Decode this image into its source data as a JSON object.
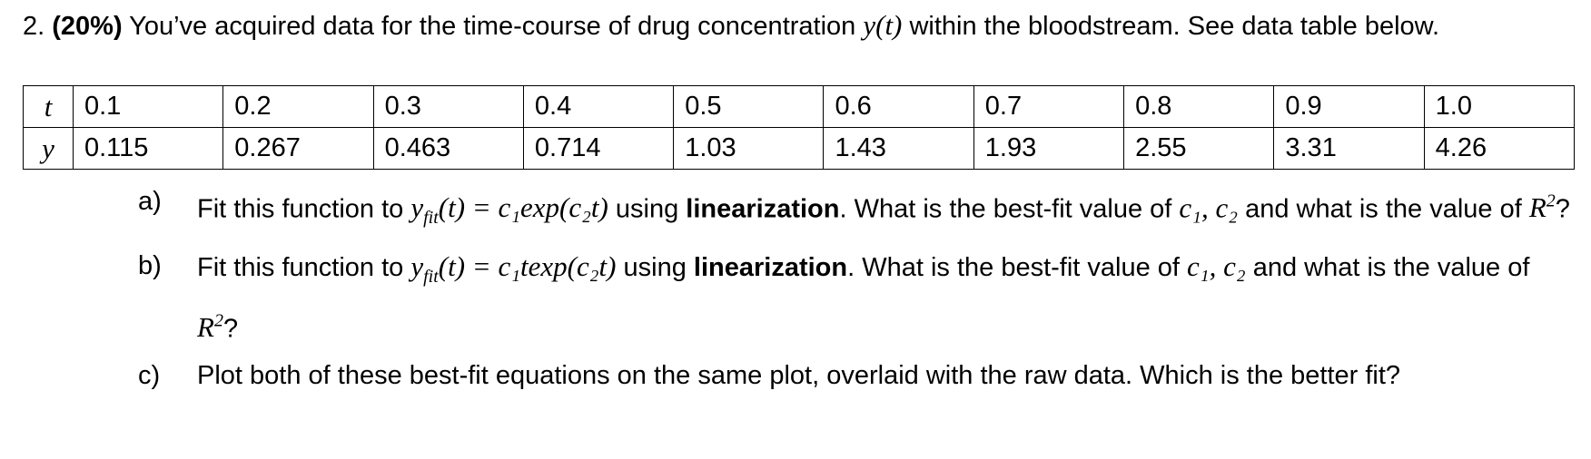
{
  "header": {
    "label": "2.",
    "points": "(20%)",
    "text_1": "You’ve acquired data for the time-course of drug concentration",
    "var": "y(t)",
    "text_2": "within the bloodstream. See data table below."
  },
  "table": {
    "rows": [
      [
        "t",
        "0.1",
        "0.2",
        "0.3",
        "0.4",
        "0.5",
        "0.6",
        "0.7",
        "0.8",
        "0.9",
        "1.0"
      ],
      [
        "y",
        "0.115",
        "0.267",
        "0.463",
        "0.714",
        "1.03",
        "1.43",
        "1.93",
        "2.55",
        "3.31",
        "4.26"
      ]
    ]
  },
  "questions": [
    {
      "label": "a)",
      "lead": "Fit this function to",
      "lhs": "y",
      "lhs_sub": "fit",
      "rhs": "(t) = c₁exp(c₂t)",
      "method_prefix": "using",
      "method": "linearization",
      "ask": ". What is the best-fit value of",
      "params": "c₁, c₂",
      "ask_2": "and what is the value of",
      "metric": "R",
      "metric_sup": "2",
      "end": "?"
    },
    {
      "label": "b)",
      "lead": "Fit this function to",
      "lhs": "y",
      "lhs_sub": "fit",
      "rhs": "(t) = c₁texp(c₂t)",
      "method_prefix": "using",
      "method": "linearization",
      "ask": ". What is the best-fit value of",
      "params": "c₁, c₂",
      "ask_2": "and what is the value of",
      "metric": "R",
      "metric_sup": "2",
      "end": "?"
    },
    {
      "label": "c)",
      "text": "Plot both of these best-fit equations on the same plot, overlaid with the raw data. Which is the better fit?"
    }
  ]
}
